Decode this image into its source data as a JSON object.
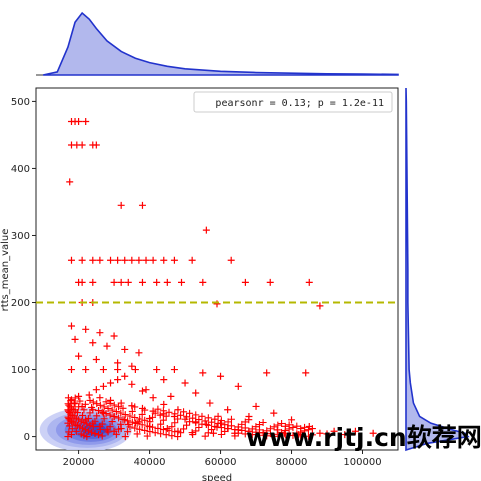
{
  "chart_data": {
    "type": "scatter",
    "xlabel": "speed",
    "ylabel": "rtts_mean_value",
    "xlim": [
      8000,
      110000
    ],
    "ylim": [
      -20,
      520
    ],
    "x_ticks": [
      20000,
      40000,
      60000,
      80000,
      100000
    ],
    "y_ticks": [
      0,
      100,
      200,
      300,
      400,
      500
    ],
    "legend_text": "pearsonr = 0.13; p = 1.2e-11",
    "legend_position": "top-right",
    "marker": "+",
    "marker_color": "#ff0000",
    "kde_color": "#2233cc",
    "reference_line": {
      "y": 200,
      "color": "#b5b800",
      "style": "dashed"
    },
    "marginal_x_kde": {
      "x": [
        10000,
        14000,
        17000,
        19000,
        21000,
        23000,
        25000,
        28000,
        32000,
        36000,
        40000,
        45000,
        50000,
        60000,
        70000,
        80000,
        90000,
        100000,
        110000
      ],
      "density": [
        0,
        0.05,
        0.45,
        0.85,
        1.0,
        0.9,
        0.75,
        0.55,
        0.38,
        0.27,
        0.2,
        0.14,
        0.1,
        0.06,
        0.04,
        0.03,
        0.02,
        0.015,
        0.01
      ]
    },
    "marginal_y_kde": {
      "y": [
        -20,
        -10,
        0,
        5,
        10,
        20,
        30,
        50,
        80,
        100,
        150,
        200,
        250,
        300,
        350,
        400,
        450,
        500,
        520
      ],
      "density": [
        0,
        0.35,
        1.0,
        0.95,
        0.75,
        0.4,
        0.22,
        0.12,
        0.07,
        0.05,
        0.04,
        0.03,
        0.03,
        0.025,
        0.02,
        0.015,
        0.01,
        0.005,
        0
      ]
    },
    "points": [
      [
        18000,
        470
      ],
      [
        19000,
        470
      ],
      [
        20000,
        470
      ],
      [
        22000,
        470
      ],
      [
        18000,
        435
      ],
      [
        19500,
        435
      ],
      [
        21000,
        435
      ],
      [
        24000,
        435
      ],
      [
        25000,
        435
      ],
      [
        17500,
        380
      ],
      [
        32000,
        345
      ],
      [
        38000,
        345
      ],
      [
        56000,
        308
      ],
      [
        18000,
        263
      ],
      [
        21000,
        263
      ],
      [
        24000,
        263
      ],
      [
        26000,
        263
      ],
      [
        29000,
        263
      ],
      [
        31000,
        263
      ],
      [
        33000,
        263
      ],
      [
        35000,
        263
      ],
      [
        37000,
        263
      ],
      [
        39000,
        263
      ],
      [
        41000,
        263
      ],
      [
        44000,
        263
      ],
      [
        47000,
        263
      ],
      [
        52000,
        263
      ],
      [
        63000,
        263
      ],
      [
        20000,
        230
      ],
      [
        21000,
        230
      ],
      [
        24000,
        230
      ],
      [
        30000,
        230
      ],
      [
        32000,
        230
      ],
      [
        34000,
        230
      ],
      [
        38000,
        230
      ],
      [
        42000,
        230
      ],
      [
        45000,
        230
      ],
      [
        49000,
        230
      ],
      [
        55000,
        230
      ],
      [
        67000,
        230
      ],
      [
        74000,
        230
      ],
      [
        85000,
        230
      ],
      [
        21000,
        200
      ],
      [
        24000,
        200
      ],
      [
        59000,
        198
      ],
      [
        88000,
        195
      ],
      [
        18000,
        165
      ],
      [
        22000,
        160
      ],
      [
        26000,
        155
      ],
      [
        30000,
        150
      ],
      [
        19000,
        145
      ],
      [
        24000,
        140
      ],
      [
        28000,
        135
      ],
      [
        33000,
        130
      ],
      [
        37000,
        125
      ],
      [
        20000,
        120
      ],
      [
        25000,
        115
      ],
      [
        31000,
        110
      ],
      [
        35000,
        105
      ],
      [
        42000,
        100
      ],
      [
        47000,
        100
      ],
      [
        18000,
        100
      ],
      [
        22000,
        100
      ],
      [
        27000,
        100
      ],
      [
        31000,
        100
      ],
      [
        36000,
        100
      ],
      [
        55000,
        95
      ],
      [
        73000,
        95
      ],
      [
        84000,
        95
      ],
      [
        60000,
        90
      ],
      [
        44000,
        85
      ],
      [
        50000,
        80
      ],
      [
        65000,
        75
      ],
      [
        39000,
        70
      ],
      [
        53000,
        65
      ],
      [
        46000,
        60
      ],
      [
        57000,
        50
      ],
      [
        70000,
        45
      ],
      [
        62000,
        40
      ],
      [
        75000,
        35
      ],
      [
        68000,
        30
      ],
      [
        80000,
        25
      ],
      [
        60000,
        20
      ],
      [
        85000,
        15
      ],
      [
        76000,
        10
      ],
      [
        92000,
        8
      ],
      [
        98000,
        8
      ],
      [
        103000,
        5
      ],
      [
        88000,
        5
      ],
      [
        82000,
        3
      ],
      [
        70000,
        3
      ],
      [
        64000,
        5
      ],
      [
        58000,
        5
      ],
      [
        52000,
        6
      ],
      [
        48000,
        8
      ],
      [
        45000,
        12
      ],
      [
        40000,
        15
      ],
      [
        36000,
        20
      ],
      [
        33000,
        25
      ],
      [
        30000,
        30
      ],
      [
        27000,
        35
      ],
      [
        24000,
        40
      ],
      [
        21000,
        45
      ],
      [
        19000,
        50
      ],
      [
        18000,
        55
      ],
      [
        20000,
        60
      ],
      [
        23000,
        62
      ],
      [
        26000,
        58
      ],
      [
        29000,
        54
      ],
      [
        32000,
        50
      ],
      [
        35000,
        46
      ],
      [
        38000,
        42
      ],
      [
        41000,
        38
      ],
      [
        44000,
        34
      ],
      [
        47000,
        30
      ],
      [
        50000,
        26
      ],
      [
        53000,
        22
      ],
      [
        56000,
        18
      ],
      [
        59000,
        14
      ],
      [
        62000,
        12
      ],
      [
        65000,
        10
      ],
      [
        68000,
        8
      ],
      [
        72000,
        6
      ],
      [
        78000,
        5
      ],
      [
        90000,
        4
      ],
      [
        95000,
        3
      ],
      [
        22000,
        25
      ],
      [
        24000,
        20
      ],
      [
        26000,
        15
      ],
      [
        28000,
        10
      ],
      [
        30000,
        8
      ],
      [
        32000,
        12
      ],
      [
        34000,
        18
      ],
      [
        37000,
        22
      ],
      [
        40000,
        27
      ],
      [
        43000,
        32
      ],
      [
        25000,
        70
      ],
      [
        27000,
        75
      ],
      [
        29000,
        80
      ],
      [
        31000,
        85
      ],
      [
        33000,
        90
      ],
      [
        35000,
        78
      ],
      [
        38000,
        68
      ],
      [
        41000,
        58
      ],
      [
        44000,
        48
      ],
      [
        48000,
        40
      ]
    ]
  }
}
